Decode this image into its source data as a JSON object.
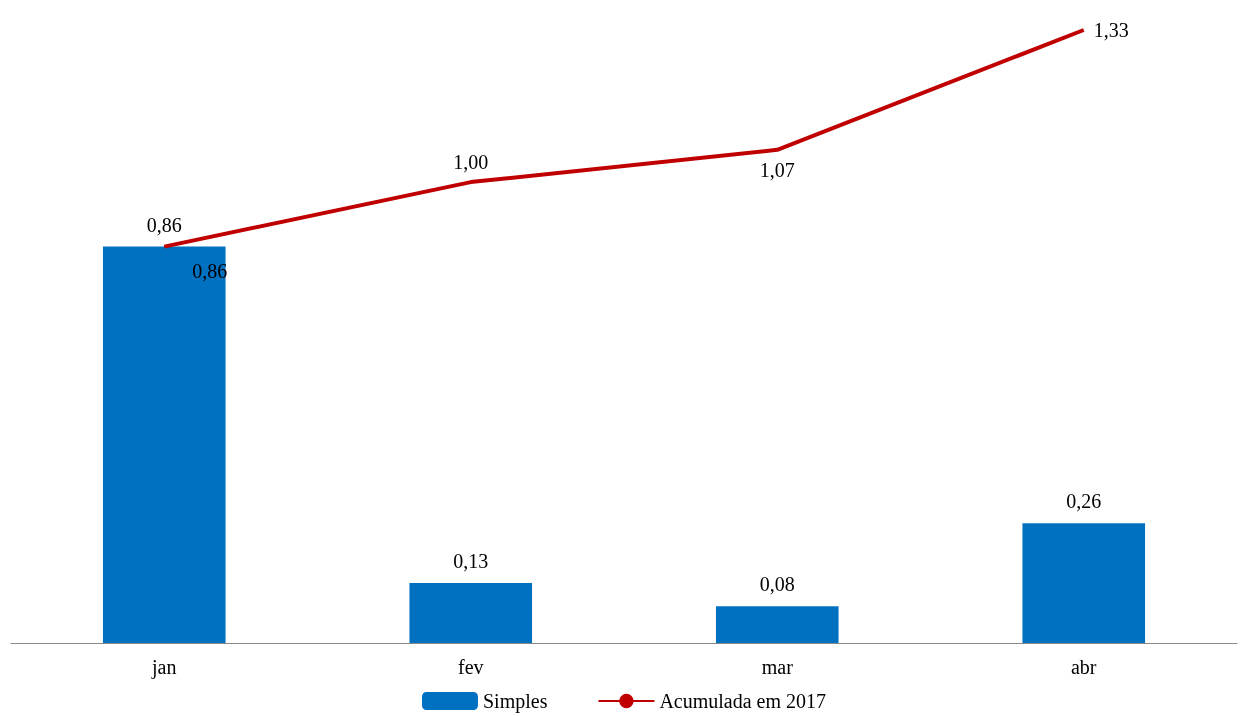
{
  "chart_data": {
    "type": "bar",
    "categories": [
      "jan",
      "fev",
      "mar",
      "abr"
    ],
    "series": [
      {
        "name": "Simples",
        "color": "#0070c0",
        "values": [
          0.86,
          0.13,
          0.08,
          0.26
        ],
        "value_labels": [
          "0,86",
          "0,13",
          "0,08",
          "0,26"
        ]
      },
      {
        "name": "Acumulada em 2017",
        "type": "line",
        "color": "#c00000",
        "values": [
          0.86,
          1.0,
          1.07,
          1.33
        ],
        "value_labels": [
          "0,86",
          "1,00",
          "1,07",
          "1,33"
        ]
      }
    ],
    "legend": "bottom",
    "grid": false,
    "marker": "none"
  }
}
